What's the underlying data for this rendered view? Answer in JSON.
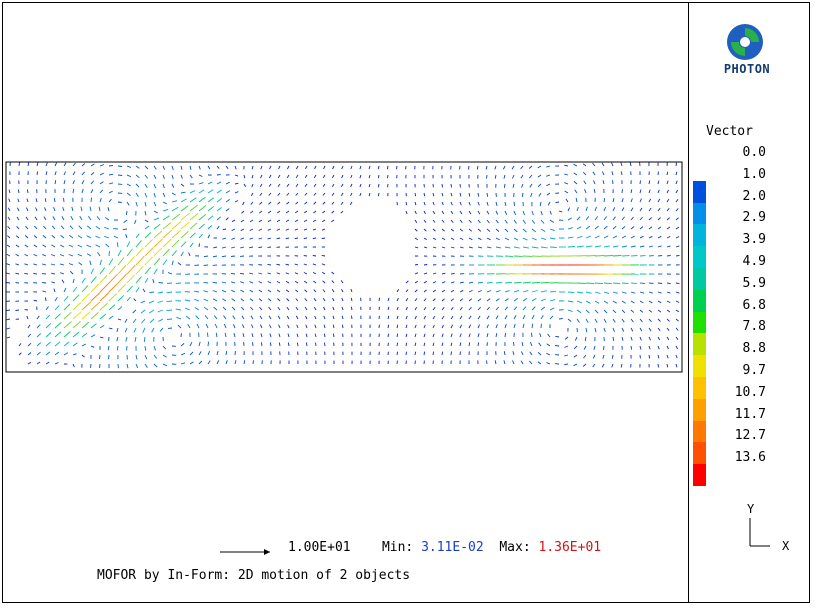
{
  "brand": {
    "name": "PHOTON",
    "logo_icon": "photon-logo-icon"
  },
  "legend": {
    "title": "Vector",
    "entries": [
      {
        "label": "0.0",
        "color": "#0010d8"
      },
      {
        "label": "1.0",
        "color": "#0050e0"
      },
      {
        "label": "2.0",
        "color": "#0090e8"
      },
      {
        "label": "2.9",
        "color": "#00b4dc"
      },
      {
        "label": "3.9",
        "color": "#00c8c8"
      },
      {
        "label": "4.9",
        "color": "#00c8a0"
      },
      {
        "label": "5.9",
        "color": "#00d050"
      },
      {
        "label": "6.8",
        "color": "#20e000"
      },
      {
        "label": "7.8",
        "color": "#b8e000"
      },
      {
        "label": "8.8",
        "color": "#f0e000"
      },
      {
        "label": "9.7",
        "color": "#ffc000"
      },
      {
        "label": "10.7",
        "color": "#ffa000"
      },
      {
        "label": "11.7",
        "color": "#ff7800"
      },
      {
        "label": "12.7",
        "color": "#ff5000"
      },
      {
        "label": "13.6",
        "color": "#ff0000"
      }
    ]
  },
  "scale": {
    "reference_value": "1.00E+01",
    "min_label": "Min:",
    "min_value": "3.11E-02",
    "max_label": "Max:",
    "max_value": "1.36E+01"
  },
  "axes": {
    "y_label": "Y",
    "x_label": "X"
  },
  "caption": "MOFOR by In-Form: 2D motion of 2 objects",
  "plot": {
    "type": "vector-field",
    "colormap": [
      "#0010d8",
      "#00b4dc",
      "#00d050",
      "#f0e000",
      "#ff0000"
    ]
  }
}
